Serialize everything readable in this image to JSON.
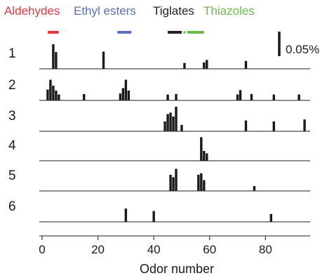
{
  "chart_data": {
    "type": "bar",
    "xlabel": "Odor number",
    "xlim": [
      -1,
      96
    ],
    "xticks": [
      0,
      20,
      40,
      60,
      80
    ],
    "legend": [
      {
        "label": "Aldehydes",
        "color": "#e8373c",
        "range": [
          2,
          6
        ]
      },
      {
        "label": "Ethyl esters",
        "color": "#5a6fb5",
        "range": [
          27,
          32
        ]
      },
      {
        "label": "Tiglates",
        "color": "#222222",
        "range": [
          45,
          50
        ]
      },
      {
        "label": "Thiazoles",
        "color": "#6cbb4e",
        "range": [
          52,
          58
        ]
      }
    ],
    "separator_dot": {
      "x": 51,
      "color": "#6cbb4e"
    },
    "scale_bar": {
      "value": 0.05,
      "label": "0.05%"
    },
    "series": [
      {
        "name": "1",
        "points": [
          {
            "x": 4,
            "y": 0.05
          },
          {
            "x": 5,
            "y": 0.034
          },
          {
            "x": 22,
            "y": 0.035
          },
          {
            "x": 51,
            "y": 0.012
          },
          {
            "x": 58,
            "y": 0.013
          },
          {
            "x": 59,
            "y": 0.018
          },
          {
            "x": 73,
            "y": 0.016
          }
        ]
      },
      {
        "name": "2",
        "points": [
          {
            "x": 2,
            "y": 0.022
          },
          {
            "x": 3,
            "y": 0.042
          },
          {
            "x": 4,
            "y": 0.03
          },
          {
            "x": 5,
            "y": 0.02
          },
          {
            "x": 6,
            "y": 0.012
          },
          {
            "x": 15,
            "y": 0.013
          },
          {
            "x": 28,
            "y": 0.014
          },
          {
            "x": 29,
            "y": 0.025
          },
          {
            "x": 30,
            "y": 0.042
          },
          {
            "x": 31,
            "y": 0.02
          },
          {
            "x": 45,
            "y": 0.012
          },
          {
            "x": 48,
            "y": 0.013
          },
          {
            "x": 70,
            "y": 0.012
          },
          {
            "x": 71,
            "y": 0.021
          },
          {
            "x": 75,
            "y": 0.013
          },
          {
            "x": 83,
            "y": 0.012
          },
          {
            "x": 92,
            "y": 0.012
          }
        ]
      },
      {
        "name": "3",
        "points": [
          {
            "x": 44,
            "y": 0.02
          },
          {
            "x": 45,
            "y": 0.035
          },
          {
            "x": 46,
            "y": 0.038
          },
          {
            "x": 47,
            "y": 0.03
          },
          {
            "x": 48,
            "y": 0.05
          },
          {
            "x": 50,
            "y": 0.013
          },
          {
            "x": 73,
            "y": 0.022
          },
          {
            "x": 83,
            "y": 0.02
          },
          {
            "x": 94,
            "y": 0.024
          }
        ]
      },
      {
        "name": "4",
        "points": [
          {
            "x": 57,
            "y": 0.048
          },
          {
            "x": 58,
            "y": 0.02
          },
          {
            "x": 59,
            "y": 0.015
          }
        ]
      },
      {
        "name": "5",
        "points": [
          {
            "x": 46,
            "y": 0.033
          },
          {
            "x": 47,
            "y": 0.028
          },
          {
            "x": 48,
            "y": 0.045
          },
          {
            "x": 56,
            "y": 0.033
          },
          {
            "x": 57,
            "y": 0.036
          },
          {
            "x": 58,
            "y": 0.022
          },
          {
            "x": 76,
            "y": 0.01
          }
        ]
      },
      {
        "name": "6",
        "points": [
          {
            "x": 30,
            "y": 0.027
          },
          {
            "x": 40,
            "y": 0.022
          },
          {
            "x": 82,
            "y": 0.016
          }
        ]
      }
    ]
  }
}
